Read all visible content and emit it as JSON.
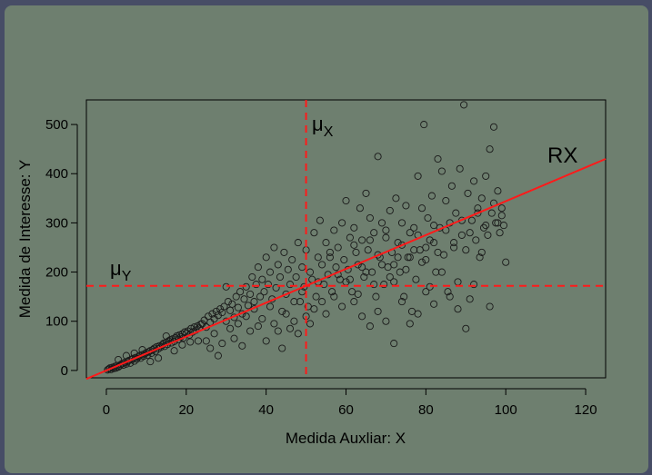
{
  "chart_data": {
    "type": "scatter",
    "title": "",
    "xlabel": "Medida Auxliar: X",
    "ylabel": "Medida de Interesse: Y",
    "xlim": [
      -5,
      125
    ],
    "ylim": [
      -15,
      550
    ],
    "xticks": [
      0,
      20,
      40,
      60,
      80,
      100,
      120
    ],
    "yticks": [
      0,
      100,
      200,
      300,
      400,
      500
    ],
    "grid": false,
    "colors": {
      "points": "#1a1a1a",
      "regression": "#ff1a1a",
      "mean_lines": "#ff1a1a"
    },
    "reference_lines": {
      "mu_x": {
        "label_main": "μ",
        "label_sub": "X",
        "value": 50
      },
      "mu_y": {
        "label_main": "μ",
        "label_sub": "Y",
        "value": 172
      }
    },
    "regression": {
      "label": "RX",
      "intercept": 0,
      "slope": 3.44
    },
    "series": [
      {
        "points": [
          [
            0.3,
            1
          ],
          [
            0.6,
            3
          ],
          [
            0.9,
            5
          ],
          [
            1.2,
            2
          ],
          [
            1.5,
            6
          ],
          [
            1.8,
            4
          ],
          [
            2.1,
            8
          ],
          [
            2.4,
            5
          ],
          [
            2.7,
            10
          ],
          [
            3,
            7
          ],
          [
            3.3,
            9
          ],
          [
            3.6,
            12
          ],
          [
            4,
            14
          ],
          [
            4.3,
            11
          ],
          [
            4.6,
            16
          ],
          [
            5,
            13
          ],
          [
            5.3,
            18
          ],
          [
            5.6,
            20
          ],
          [
            6,
            15
          ],
          [
            6.3,
            22
          ],
          [
            6.6,
            24
          ],
          [
            7,
            19
          ],
          [
            7.3,
            26
          ],
          [
            7.6,
            23
          ],
          [
            8,
            28
          ],
          [
            8.3,
            30
          ],
          [
            8.6,
            25
          ],
          [
            9,
            32
          ],
          [
            9.3,
            29
          ],
          [
            9.6,
            34
          ],
          [
            10,
            36
          ],
          [
            10.3,
            31
          ],
          [
            10.6,
            38
          ],
          [
            11,
            40
          ],
          [
            11.3,
            35
          ],
          [
            11.6,
            42
          ],
          [
            12,
            45
          ],
          [
            12.3,
            39
          ],
          [
            12.6,
            48
          ],
          [
            13,
            44
          ],
          [
            13.3,
            50
          ],
          [
            13.6,
            47
          ],
          [
            14,
            52
          ],
          [
            14.3,
            55
          ],
          [
            14.6,
            49
          ],
          [
            15,
            57
          ],
          [
            15.3,
            53
          ],
          [
            15.6,
            60
          ],
          [
            16,
            62
          ],
          [
            16.3,
            56
          ],
          [
            16.6,
            64
          ],
          [
            17,
            59
          ],
          [
            17.3,
            66
          ],
          [
            17.6,
            70
          ],
          [
            18,
            63
          ],
          [
            18.3,
            72
          ],
          [
            18.6,
            68
          ],
          [
            19,
            74
          ],
          [
            19.3,
            66
          ],
          [
            19.6,
            78
          ],
          [
            20,
            75
          ],
          [
            20.4,
            80
          ],
          [
            20.8,
            72
          ],
          [
            21.2,
            85
          ],
          [
            21.6,
            78
          ],
          [
            22,
            88
          ],
          [
            22.4,
            82
          ],
          [
            22.8,
            90
          ],
          [
            23.2,
            86
          ],
          [
            23.6,
            94
          ],
          [
            3,
            22
          ],
          [
            5,
            30
          ],
          [
            7,
            35
          ],
          [
            9,
            42
          ],
          [
            11,
            18
          ],
          [
            13,
            25
          ],
          [
            15,
            70
          ],
          [
            17,
            40
          ],
          [
            19,
            52
          ],
          [
            21,
            58
          ],
          [
            23,
            60
          ],
          [
            24,
            95
          ],
          [
            24.5,
            102
          ],
          [
            25,
            88
          ],
          [
            25.5,
            110
          ],
          [
            26,
            98
          ],
          [
            26.5,
            115
          ],
          [
            27,
            105
          ],
          [
            27.5,
            120
          ],
          [
            28,
            112
          ],
          [
            28.5,
            125
          ],
          [
            29,
            118
          ],
          [
            29.5,
            130
          ],
          [
            30,
            100
          ],
          [
            30.5,
            140
          ],
          [
            31,
            122
          ],
          [
            31.5,
            135
          ],
          [
            32,
            108
          ],
          [
            32.5,
            150
          ],
          [
            33,
            128
          ],
          [
            33.5,
            160
          ],
          [
            34,
            115
          ],
          [
            34.5,
            145
          ],
          [
            35,
            170
          ],
          [
            35.5,
            132
          ],
          [
            36,
            155
          ],
          [
            36.5,
            190
          ],
          [
            37,
            140
          ],
          [
            37.5,
            175
          ],
          [
            38,
            210
          ],
          [
            38.5,
            150
          ],
          [
            39,
            185
          ],
          [
            39.5,
            160
          ],
          [
            40,
            230
          ],
          [
            40.5,
            175
          ],
          [
            41,
            200
          ],
          [
            41.5,
            145
          ],
          [
            42,
            250
          ],
          [
            42.5,
            168
          ],
          [
            43,
            215
          ],
          [
            43.5,
            190
          ],
          [
            44,
            120
          ],
          [
            44.5,
            240
          ],
          [
            45,
            155
          ],
          [
            45.5,
            205
          ],
          [
            46,
            175
          ],
          [
            46.5,
            225
          ],
          [
            47,
            100
          ],
          [
            47.5,
            190
          ],
          [
            48,
            260
          ],
          [
            48.5,
            140
          ],
          [
            49,
            210
          ],
          [
            49.5,
            170
          ],
          [
            50,
            245
          ],
          [
            50.5,
            130
          ],
          [
            51,
            200
          ],
          [
            51.5,
            185
          ],
          [
            52,
            280
          ],
          [
            52.5,
            150
          ],
          [
            53,
            230
          ],
          [
            25,
            60
          ],
          [
            26,
            45
          ],
          [
            27,
            75
          ],
          [
            28,
            30
          ],
          [
            29,
            55
          ],
          [
            30,
            170
          ],
          [
            31,
            85
          ],
          [
            32,
            65
          ],
          [
            33,
            95
          ],
          [
            34,
            50
          ],
          [
            35,
            110
          ],
          [
            36,
            80
          ],
          [
            37,
            125
          ],
          [
            38,
            90
          ],
          [
            39,
            105
          ],
          [
            40,
            60
          ],
          [
            41,
            130
          ],
          [
            42,
            95
          ],
          [
            43,
            80
          ],
          [
            44,
            45
          ],
          [
            45,
            115
          ],
          [
            46,
            85
          ],
          [
            47,
            140
          ],
          [
            48,
            75
          ],
          [
            49,
            160
          ],
          [
            50,
            110
          ],
          [
            51,
            95
          ],
          [
            52,
            125
          ],
          [
            53,
            180
          ],
          [
            54,
            140
          ],
          [
            53.5,
            305
          ],
          [
            54,
            215
          ],
          [
            54.5,
            175
          ],
          [
            55,
            260
          ],
          [
            55.5,
            195
          ],
          [
            56,
            240
          ],
          [
            56.5,
            160
          ],
          [
            57,
            285
          ],
          [
            57.5,
            210
          ],
          [
            58,
            250
          ],
          [
            58.5,
            185
          ],
          [
            59,
            300
          ],
          [
            59.5,
            225
          ],
          [
            60,
            345
          ],
          [
            60.5,
            205
          ],
          [
            61,
            270
          ],
          [
            61.5,
            160
          ],
          [
            62,
            290
          ],
          [
            62.5,
            240
          ],
          [
            63,
            215
          ],
          [
            63.5,
            330
          ],
          [
            64,
            265
          ],
          [
            64.5,
            190
          ],
          [
            65,
            360
          ],
          [
            65.5,
            245
          ],
          [
            66,
            310
          ],
          [
            66.5,
            200
          ],
          [
            67,
            280
          ],
          [
            67.5,
            150
          ],
          [
            68,
            435
          ],
          [
            68.5,
            230
          ],
          [
            69,
            300
          ],
          [
            69.5,
            175
          ],
          [
            70,
            270
          ],
          [
            70.5,
            210
          ],
          [
            71,
            325
          ],
          [
            71.5,
            240
          ],
          [
            72,
            180
          ],
          [
            72.5,
            350
          ],
          [
            73,
            260
          ],
          [
            73.5,
            200
          ],
          [
            74,
            300
          ],
          [
            74.5,
            150
          ],
          [
            75,
            335
          ],
          [
            75.5,
            230
          ],
          [
            76,
            280
          ],
          [
            76.5,
            120
          ],
          [
            77,
            290
          ],
          [
            77.5,
            185
          ],
          [
            78,
            395
          ],
          [
            78.5,
            245
          ],
          [
            79,
            330
          ],
          [
            79.5,
            500
          ],
          [
            80,
            225
          ],
          [
            80.5,
            310
          ],
          [
            81,
            170
          ],
          [
            81.5,
            355
          ],
          [
            82,
            260
          ],
          [
            82.5,
            200
          ],
          [
            83,
            430
          ],
          [
            83.5,
            290
          ],
          [
            84,
            405
          ],
          [
            84.5,
            235
          ],
          [
            85,
            345
          ],
          [
            85.5,
            160
          ],
          [
            86,
            300
          ],
          [
            86.5,
            375
          ],
          [
            87,
            250
          ],
          [
            87.5,
            320
          ],
          [
            88,
            180
          ],
          [
            88.5,
            410
          ],
          [
            89,
            275
          ],
          [
            89.5,
            540
          ],
          [
            90,
            245
          ],
          [
            90.5,
            360
          ],
          [
            91,
            145
          ],
          [
            91.5,
            305
          ],
          [
            92,
            385
          ],
          [
            92.5,
            265
          ],
          [
            93,
            330
          ],
          [
            93.5,
            230
          ],
          [
            94,
            350
          ],
          [
            94.5,
            290
          ],
          [
            95,
            395
          ],
          [
            95.5,
            275
          ],
          [
            96,
            450
          ],
          [
            96.5,
            320
          ],
          [
            97,
            495
          ],
          [
            97.5,
            300
          ],
          [
            98,
            365
          ],
          [
            98.5,
            280
          ],
          [
            99,
            330
          ],
          [
            99.5,
            295
          ],
          [
            100,
            220
          ],
          [
            60,
            180
          ],
          [
            62,
            140
          ],
          [
            64,
            110
          ],
          [
            66,
            90
          ],
          [
            68,
            120
          ],
          [
            70,
            100
          ],
          [
            72,
            55
          ],
          [
            74,
            140
          ],
          [
            76,
            95
          ],
          [
            78,
            115
          ],
          [
            80,
            160
          ],
          [
            82,
            135
          ],
          [
            84,
            200
          ],
          [
            86,
            150
          ],
          [
            88,
            125
          ],
          [
            90,
            85
          ],
          [
            92,
            175
          ],
          [
            94,
            240
          ],
          [
            96,
            130
          ],
          [
            98,
            300
          ],
          [
            55,
            115
          ],
          [
            57,
            150
          ],
          [
            59,
            130
          ],
          [
            61,
            185
          ],
          [
            63,
            155
          ],
          [
            65,
            200
          ],
          [
            67,
            175
          ],
          [
            69,
            215
          ],
          [
            71,
            190
          ],
          [
            73,
            230
          ],
          [
            75,
            205
          ],
          [
            77,
            245
          ],
          [
            79,
            220
          ],
          [
            81,
            265
          ],
          [
            83,
            240
          ],
          [
            85,
            285
          ],
          [
            87,
            260
          ],
          [
            89,
            305
          ],
          [
            91,
            280
          ],
          [
            93,
            320
          ],
          [
            95,
            295
          ],
          [
            97,
            340
          ],
          [
            99,
            315
          ],
          [
            56,
            230
          ],
          [
            58,
            195
          ],
          [
            62,
            255
          ],
          [
            64,
            210
          ],
          [
            66,
            265
          ],
          [
            68,
            235
          ],
          [
            70,
            285
          ],
          [
            72,
            215
          ],
          [
            74,
            255
          ],
          [
            76,
            230
          ],
          [
            78,
            275
          ],
          [
            80,
            250
          ],
          [
            82,
            295
          ]
        ]
      }
    ]
  }
}
